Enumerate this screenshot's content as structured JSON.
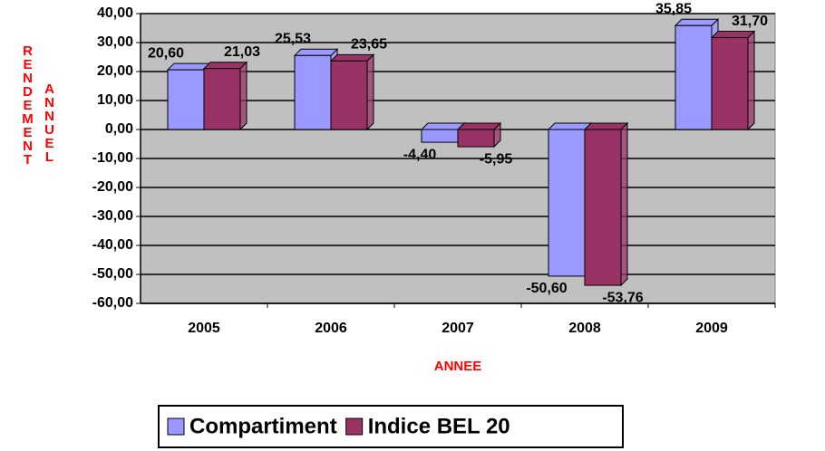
{
  "chart_data": {
    "type": "bar",
    "x_label": "ANNEE",
    "y_label": [
      "RENDEMENT",
      "ANNUEL"
    ],
    "categories": [
      "2005",
      "2006",
      "2007",
      "2008",
      "2009"
    ],
    "series": [
      {
        "name": "Compartiment",
        "color": "#9999ff",
        "values": [
          20.6,
          25.53,
          -4.4,
          -50.6,
          35.85
        ],
        "value_labels": [
          "20,60",
          "25,53",
          "-4,40",
          "-50,60",
          "35,85"
        ]
      },
      {
        "name": "Indice BEL 20",
        "color": "#993366",
        "values": [
          21.03,
          23.65,
          -5.95,
          -53.76,
          31.7
        ],
        "value_labels": [
          "21,03",
          "23,65",
          "-5,95",
          "-53,76",
          "31,70"
        ]
      }
    ],
    "ylim": [
      -60,
      40
    ],
    "yticks": [
      {
        "value": -60,
        "label": "-60,00"
      },
      {
        "value": -50,
        "label": "-50,00"
      },
      {
        "value": -40,
        "label": "-40,00"
      },
      {
        "value": -30,
        "label": "-30,00"
      },
      {
        "value": -20,
        "label": "-20,00"
      },
      {
        "value": -10,
        "label": "-10,00"
      },
      {
        "value": 0,
        "label": "0,00"
      },
      {
        "value": 10,
        "label": "10,00"
      },
      {
        "value": 20,
        "label": "20,00"
      },
      {
        "value": 30,
        "label": "30,00"
      },
      {
        "value": 40,
        "label": "40,00"
      }
    ],
    "grid": true,
    "legend": "bottom"
  }
}
